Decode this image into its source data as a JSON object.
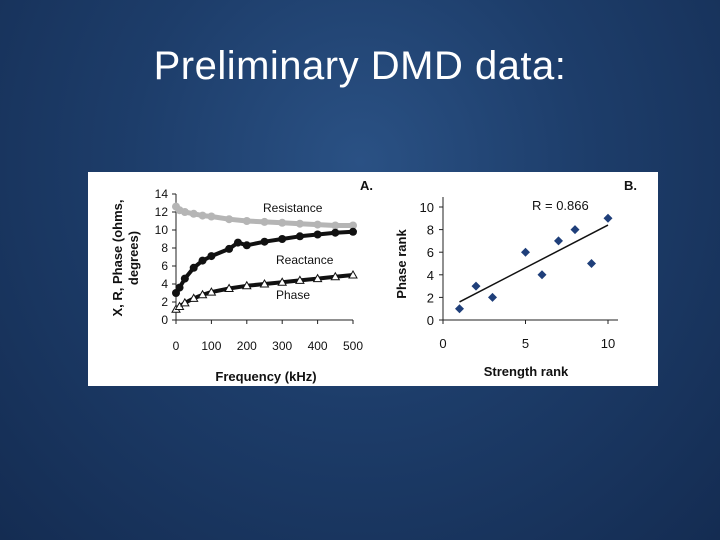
{
  "slide": {
    "title": "Preliminary DMD data:"
  },
  "chart_data": [
    {
      "type": "scatter",
      "panel_label": "A.",
      "xlabel": "Frequency (kHz)",
      "ylabel_line1": "X, R, Phase (ohms,",
      "ylabel_line2": "degrees)",
      "xlim": [
        0,
        500
      ],
      "ylim": [
        0,
        14
      ],
      "xticks": [
        0,
        100,
        200,
        300,
        400,
        500
      ],
      "yticks": [
        0,
        2,
        4,
        6,
        8,
        10,
        12,
        14
      ],
      "series": [
        {
          "name": "Resistance",
          "color": "#b5b5b5",
          "marker": "circle",
          "x": [
            0,
            10,
            25,
            50,
            75,
            100,
            150,
            200,
            250,
            300,
            350,
            400,
            450,
            500
          ],
          "y": [
            12.6,
            12.2,
            12.0,
            11.8,
            11.6,
            11.5,
            11.2,
            11.0,
            10.9,
            10.8,
            10.7,
            10.6,
            10.5,
            10.5
          ]
        },
        {
          "name": "Reactance",
          "color": "#111111",
          "marker": "circle",
          "x": [
            0,
            10,
            25,
            50,
            75,
            100,
            150,
            175,
            200,
            250,
            300,
            350,
            400,
            450,
            500
          ],
          "y": [
            3.0,
            3.6,
            4.6,
            5.8,
            6.6,
            7.1,
            7.9,
            8.6,
            8.3,
            8.7,
            9.0,
            9.3,
            9.5,
            9.7,
            9.8
          ]
        },
        {
          "name": "Phase",
          "color": "#111111",
          "marker": "triangle",
          "x": [
            0,
            10,
            25,
            50,
            75,
            100,
            150,
            200,
            250,
            300,
            350,
            400,
            450,
            500
          ],
          "y": [
            1.2,
            1.5,
            1.9,
            2.4,
            2.8,
            3.1,
            3.5,
            3.8,
            4.0,
            4.2,
            4.4,
            4.6,
            4.8,
            5.0
          ]
        }
      ]
    },
    {
      "type": "scatter",
      "panel_label": "B.",
      "xlabel": "Strength rank",
      "ylabel": "Phase rank",
      "annotation": "R = 0.866",
      "xlim": [
        0,
        10
      ],
      "ylim": [
        0,
        10
      ],
      "xticks": [
        0,
        5,
        10
      ],
      "yticks": [
        0,
        2,
        4,
        6,
        8,
        10
      ],
      "points": {
        "x": [
          1,
          2,
          3,
          5,
          6,
          7,
          8,
          9,
          10
        ],
        "y": [
          1,
          3,
          2,
          6,
          4,
          7,
          8,
          5,
          9
        ]
      },
      "trendline": {
        "x": [
          1,
          10
        ],
        "y": [
          1.6,
          8.4
        ]
      },
      "color": "#1f3f7a"
    }
  ]
}
